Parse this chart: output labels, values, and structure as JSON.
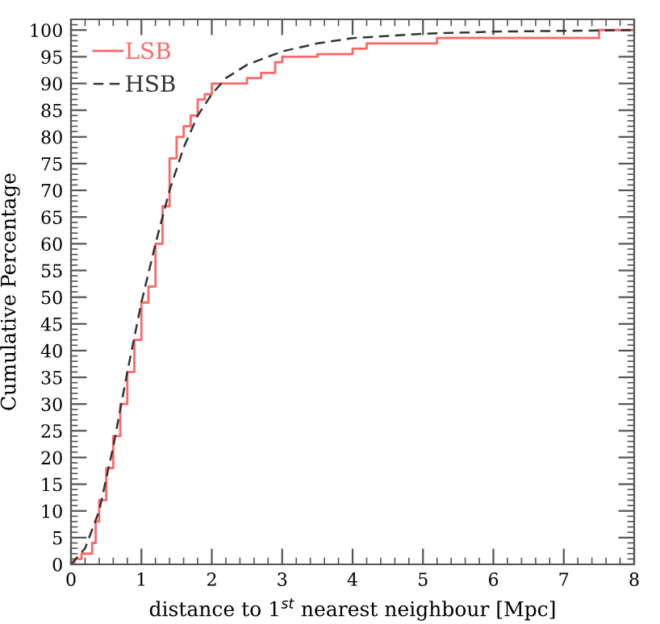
{
  "chart_data": {
    "type": "line",
    "xlabel": "distance to 1$^{st}$ nearest neighbour [Mpc]",
    "ylabel": "Cumulative Percentage",
    "xlim": [
      0,
      8
    ],
    "xticks": [
      0,
      1,
      2,
      3,
      4,
      5,
      6,
      7,
      8
    ],
    "ylim": [
      0,
      102
    ],
    "yticks": [
      0,
      5,
      10,
      15,
      20,
      25,
      30,
      35,
      40,
      45,
      50,
      55,
      60,
      65,
      70,
      75,
      80,
      85,
      90,
      95,
      100
    ],
    "legend": "top left",
    "grid": false,
    "series": [
      {
        "name": "LSB",
        "type": "step",
        "color": "#ff6666",
        "line_style": "solid",
        "x": [
          0,
          0.05,
          0.15,
          0.3,
          0.35,
          0.4,
          0.5,
          0.6,
          0.7,
          0.8,
          0.9,
          1.0,
          1.1,
          1.2,
          1.3,
          1.4,
          1.5,
          1.6,
          1.7,
          1.8,
          1.9,
          2.0,
          2.3,
          2.5,
          2.7,
          2.9,
          3.0,
          3.5,
          4.0,
          4.2,
          5.2,
          7.5,
          8.0
        ],
        "values": [
          0,
          1,
          2,
          4,
          8,
          12,
          18,
          24,
          30,
          36,
          42,
          49,
          52,
          60,
          67,
          76,
          80,
          82,
          84,
          87,
          88,
          90,
          90,
          91,
          92,
          94,
          95,
          95.5,
          96.5,
          97.5,
          98.5,
          100,
          100
        ]
      },
      {
        "name": "HSB",
        "color": "#333333",
        "line_style": "dashed",
        "x": [
          0,
          0.2,
          0.4,
          0.6,
          0.8,
          1.0,
          1.2,
          1.4,
          1.6,
          1.8,
          2.0,
          2.2,
          2.5,
          3.0,
          3.5,
          4.0,
          5.0,
          6.0,
          8.0
        ],
        "values": [
          0,
          3,
          10,
          22,
          36,
          49,
          60,
          70,
          78,
          84,
          88,
          91,
          93.5,
          96,
          97.5,
          98.5,
          99.3,
          99.7,
          100
        ]
      }
    ]
  }
}
